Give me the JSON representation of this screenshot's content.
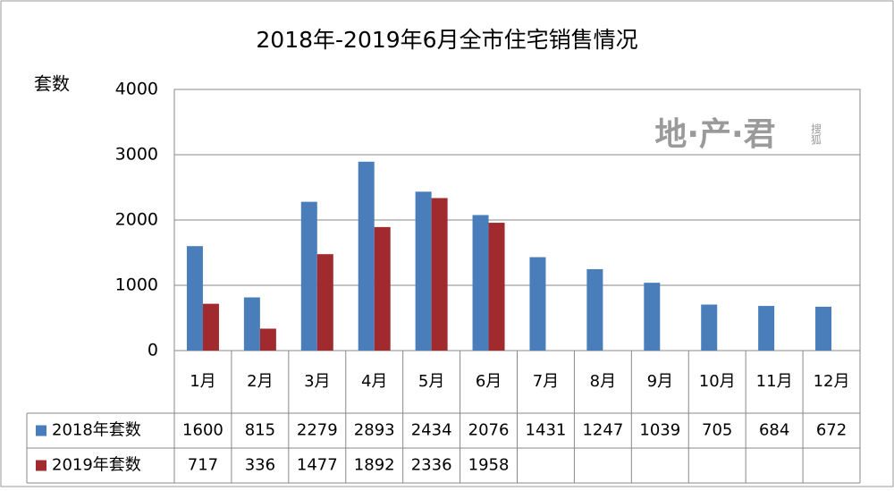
{
  "chart_data": {
    "type": "bar",
    "title": "2018年-2019年6月全市住宅销售情况",
    "y_label": "套数",
    "watermark": "地·产·君",
    "watermark_sub": "搜狐",
    "categories": [
      "1月",
      "2月",
      "3月",
      "4月",
      "5月",
      "6月",
      "7月",
      "8月",
      "9月",
      "10月",
      "11月",
      "12月"
    ],
    "series": [
      {
        "name": "2018年套数",
        "color": "#4a7ebb",
        "values": [
          1600,
          815,
          2279,
          2893,
          2434,
          2076,
          1431,
          1247,
          1039,
          705,
          684,
          672
        ]
      },
      {
        "name": "2019年套数",
        "color": "#a12a2e",
        "values": [
          717,
          336,
          1477,
          1892,
          2336,
          1958,
          null,
          null,
          null,
          null,
          null,
          null
        ]
      }
    ],
    "ylim": [
      0,
      4000
    ],
    "yticks": [
      0,
      1000,
      2000,
      3000,
      4000
    ],
    "grid": true,
    "data_table": true
  }
}
